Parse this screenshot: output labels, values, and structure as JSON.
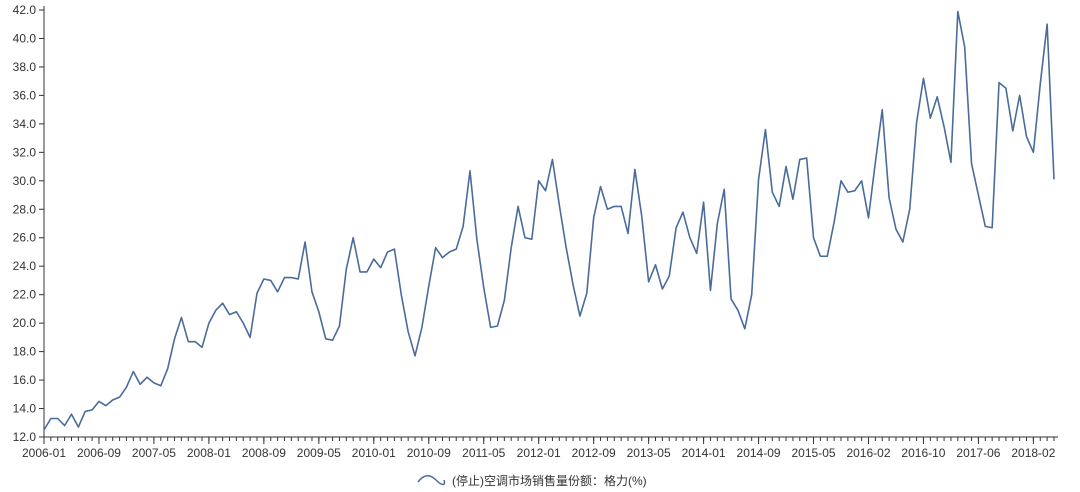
{
  "chart_data": {
    "type": "line",
    "title": "",
    "xlabel": "",
    "ylabel": "",
    "ylim": [
      12.0,
      42.0
    ],
    "y_ticks": [
      "12.0",
      "14.0",
      "16.0",
      "18.0",
      "20.0",
      "22.0",
      "24.0",
      "26.0",
      "28.0",
      "30.0",
      "32.0",
      "34.0",
      "36.0",
      "38.0",
      "40.0",
      "42.0"
    ],
    "x_tick_labels": [
      "2006-01",
      "2006-09",
      "2007-05",
      "2008-01",
      "2008-09",
      "2009-05",
      "2010-01",
      "2010-09",
      "2011-05",
      "2012-01",
      "2012-09",
      "2013-05",
      "2014-01",
      "2014-09",
      "2015-05",
      "2016-02",
      "2016-10",
      "2017-06",
      "2018-02"
    ],
    "grid": false,
    "legend_position": "bottom-center",
    "line_color": "#4a6c9b",
    "series": [
      {
        "name": "(停止)空调市场销售量份额：格力(%)",
        "values": [
          12.5,
          13.3,
          13.3,
          12.8,
          13.6,
          12.7,
          13.8,
          13.9,
          14.5,
          14.2,
          14.6,
          14.8,
          15.5,
          16.6,
          15.7,
          16.2,
          15.8,
          15.6,
          16.8,
          18.9,
          20.4,
          18.7,
          18.7,
          18.3,
          20.0,
          20.9,
          21.4,
          20.6,
          20.8,
          20.0,
          19.0,
          22.1,
          23.1,
          23.0,
          22.2,
          23.2,
          23.2,
          23.1,
          25.7,
          22.2,
          20.8,
          18.9,
          18.8,
          19.8,
          23.8,
          26.0,
          23.6,
          23.6,
          24.5,
          23.9,
          25.0,
          25.2,
          22.0,
          19.4,
          17.7,
          19.7,
          22.6,
          25.3,
          24.6,
          25.0,
          25.2,
          26.8,
          30.7,
          25.9,
          22.5,
          19.7,
          19.8,
          21.6,
          25.3,
          28.2,
          26.0,
          25.9,
          30.0,
          29.3,
          31.5,
          28.3,
          25.3,
          22.7,
          20.5,
          22.1,
          27.4,
          29.6,
          28.0,
          28.2,
          28.2,
          26.3,
          30.8,
          27.5,
          22.9,
          24.1,
          22.4,
          23.3,
          26.7,
          27.8,
          26.0,
          24.9,
          28.5,
          22.3,
          27.0,
          29.4,
          21.7,
          20.9,
          19.6,
          22.0,
          30.1,
          33.6,
          29.2,
          28.2,
          31.0,
          28.7,
          31.5,
          31.6,
          26.0,
          24.7,
          24.7,
          27.1,
          30.0,
          29.2,
          29.3,
          30.0,
          27.4,
          31.3,
          35.0,
          28.8,
          26.6,
          25.7,
          28.0,
          34.1,
          37.2,
          34.4,
          35.9,
          33.8,
          31.3,
          41.9,
          39.4,
          31.2,
          29.0,
          26.8,
          26.7,
          36.9,
          36.5,
          33.5,
          36.0,
          33.1,
          32.0,
          36.8,
          41.0,
          30.1
        ]
      }
    ]
  },
  "legend": {
    "label": "(停止)空调市场销售量份额：格力(%)"
  }
}
